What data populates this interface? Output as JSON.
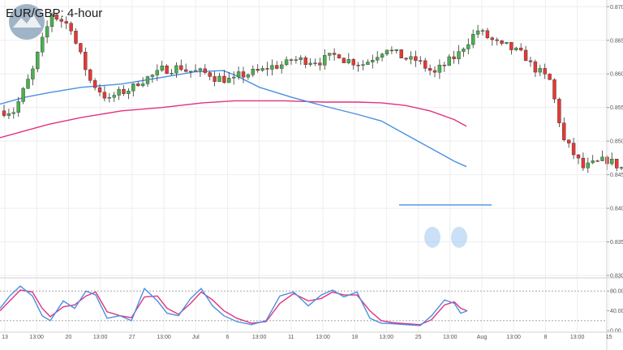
{
  "chart_data": {
    "type": "candlestick",
    "title": "EUR/GBP: 4-hour",
    "colors": {
      "up": "#4caf50",
      "down": "#e53935",
      "wick": "#333333",
      "ma_fast": "#4a90e2",
      "ma_slow": "#e0337f",
      "resistance": "#4a90e2",
      "highlight": "#9ec7ee",
      "stoch_k": "#4a90e2",
      "stoch_d": "#e0337f",
      "grid": "#eeeeee"
    },
    "price_axis": {
      "min": 0.83,
      "max": 0.871,
      "ticks": [
        "0.8700",
        "0.8650",
        "0.8600",
        "0.8550",
        "0.8500",
        "0.8450",
        "0.8400",
        "0.8350",
        "0.8300"
      ]
    },
    "x_axis": {
      "labels": [
        "13",
        "13:00",
        "20",
        "13:00",
        "27",
        "13:00",
        "Jul",
        "6",
        "13:00",
        "11",
        "13:00",
        "18",
        "13:00",
        "25",
        "13:00",
        "Aug",
        "13:00",
        "8",
        "13:00",
        "15"
      ]
    },
    "close_path": [
      [
        0.8545,
        3
      ],
      [
        0.8605,
        4
      ],
      [
        0.869,
        4
      ],
      [
        0.867,
        4
      ],
      [
        0.859,
        4
      ],
      [
        0.856,
        4
      ],
      [
        0.858,
        5
      ],
      [
        0.86,
        5
      ],
      [
        0.861,
        5
      ],
      [
        0.86,
        6
      ],
      [
        0.859,
        5
      ],
      [
        0.8605,
        6
      ],
      [
        0.8615,
        5
      ],
      [
        0.862,
        6
      ],
      [
        0.863,
        5
      ],
      [
        0.8615,
        5
      ],
      [
        0.864,
        5
      ],
      [
        0.862,
        5
      ],
      [
        0.86,
        5
      ],
      [
        0.863,
        5
      ],
      [
        0.8665,
        4
      ],
      [
        0.864,
        5
      ],
      [
        0.8625,
        5
      ],
      [
        0.859,
        5
      ],
      [
        0.85,
        3
      ],
      [
        0.846,
        4
      ],
      [
        0.847,
        4
      ],
      [
        0.846,
        4
      ],
      [
        0.844,
        4
      ],
      [
        0.847,
        4
      ],
      [
        0.85,
        4
      ],
      [
        0.849,
        4
      ],
      [
        0.848,
        4
      ],
      [
        0.852,
        4
      ],
      [
        0.853,
        4
      ],
      [
        0.852,
        4
      ],
      [
        0.856,
        6
      ],
      [
        0.852,
        4
      ],
      [
        0.85,
        4
      ],
      [
        0.847,
        2
      ],
      [
        0.842,
        4
      ],
      [
        0.84,
        4
      ],
      [
        0.8375,
        3
      ],
      [
        0.8395,
        4
      ],
      [
        0.84,
        4
      ],
      [
        0.837,
        4
      ],
      [
        0.838,
        4
      ]
    ],
    "ma_fast": [
      [
        0,
        0.8555
      ],
      [
        30,
        0.8565
      ],
      [
        60,
        0.8572
      ],
      [
        100,
        0.858
      ],
      [
        150,
        0.8585
      ],
      [
        200,
        0.8595
      ],
      [
        240,
        0.8603
      ],
      [
        275,
        0.8605
      ],
      [
        290,
        0.8598
      ],
      [
        320,
        0.858
      ],
      [
        360,
        0.8565
      ],
      [
        400,
        0.8552
      ],
      [
        440,
        0.854
      ],
      [
        470,
        0.853
      ],
      [
        500,
        0.851
      ],
      [
        530,
        0.849
      ],
      [
        560,
        0.847
      ],
      [
        575,
        0.8462
      ]
    ],
    "ma_slow": [
      [
        0,
        0.8505
      ],
      [
        30,
        0.8515
      ],
      [
        60,
        0.8525
      ],
      [
        100,
        0.8535
      ],
      [
        150,
        0.8545
      ],
      [
        200,
        0.855
      ],
      [
        250,
        0.8557
      ],
      [
        290,
        0.856
      ],
      [
        350,
        0.856
      ],
      [
        400,
        0.8558
      ],
      [
        440,
        0.8558
      ],
      [
        470,
        0.8557
      ],
      [
        500,
        0.8553
      ],
      [
        530,
        0.8545
      ],
      [
        560,
        0.8532
      ],
      [
        575,
        0.8522
      ]
    ],
    "resistance_level": 0.8405,
    "highlighted_lows": [
      0.8352,
      0.8352
    ],
    "stochastic": {
      "min": 0,
      "max": 100,
      "ticks": [
        "80.00",
        "40.00",
        "0.00"
      ],
      "levels": [
        80,
        20
      ],
      "k_points": [
        [
          0,
          45
        ],
        [
          12,
          70
        ],
        [
          25,
          90
        ],
        [
          40,
          70
        ],
        [
          52,
          30
        ],
        [
          62,
          20
        ],
        [
          78,
          60
        ],
        [
          92,
          45
        ],
        [
          106,
          80
        ],
        [
          118,
          72
        ],
        [
          132,
          25
        ],
        [
          148,
          30
        ],
        [
          162,
          20
        ],
        [
          178,
          85
        ],
        [
          194,
          60
        ],
        [
          206,
          35
        ],
        [
          220,
          30
        ],
        [
          235,
          65
        ],
        [
          248,
          85
        ],
        [
          262,
          50
        ],
        [
          276,
          30
        ],
        [
          292,
          18
        ],
        [
          310,
          12
        ],
        [
          328,
          20
        ],
        [
          345,
          70
        ],
        [
          362,
          78
        ],
        [
          380,
          50
        ],
        [
          396,
          72
        ],
        [
          410,
          82
        ],
        [
          424,
          68
        ],
        [
          440,
          78
        ],
        [
          456,
          25
        ],
        [
          470,
          15
        ],
        [
          484,
          14
        ],
        [
          500,
          12
        ],
        [
          518,
          10
        ],
        [
          532,
          30
        ],
        [
          548,
          62
        ],
        [
          560,
          55
        ],
        [
          568,
          35
        ],
        [
          576,
          40
        ]
      ],
      "d_points": [
        [
          0,
          40
        ],
        [
          12,
          60
        ],
        [
          25,
          82
        ],
        [
          40,
          78
        ],
        [
          52,
          45
        ],
        [
          62,
          28
        ],
        [
          78,
          48
        ],
        [
          92,
          52
        ],
        [
          106,
          70
        ],
        [
          118,
          78
        ],
        [
          132,
          38
        ],
        [
          148,
          30
        ],
        [
          162,
          26
        ],
        [
          178,
          68
        ],
        [
          194,
          70
        ],
        [
          206,
          45
        ],
        [
          220,
          33
        ],
        [
          235,
          55
        ],
        [
          248,
          78
        ],
        [
          262,
          62
        ],
        [
          276,
          40
        ],
        [
          292,
          25
        ],
        [
          310,
          15
        ],
        [
          328,
          18
        ],
        [
          345,
          55
        ],
        [
          362,
          75
        ],
        [
          380,
          60
        ],
        [
          396,
          65
        ],
        [
          410,
          78
        ],
        [
          424,
          72
        ],
        [
          440,
          72
        ],
        [
          456,
          40
        ],
        [
          470,
          20
        ],
        [
          484,
          16
        ],
        [
          500,
          14
        ],
        [
          518,
          12
        ],
        [
          532,
          22
        ],
        [
          548,
          52
        ],
        [
          560,
          58
        ],
        [
          568,
          45
        ],
        [
          576,
          40
        ]
      ]
    }
  }
}
